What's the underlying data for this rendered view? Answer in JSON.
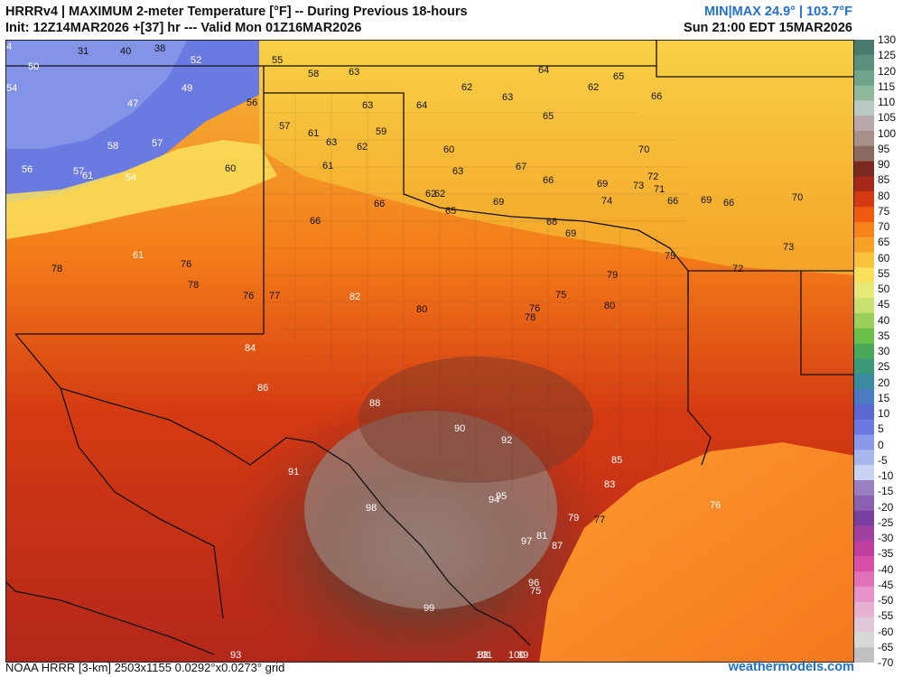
{
  "header": {
    "title": "HRRRv4 | MAXIMUM 2-meter Temperature [°F] -- During Previous 18-hours",
    "init": "Init: 12Z14MAR2026 +[37] hr --- Valid Mon 01Z16MAR2026",
    "minmax": "MIN|MAX 24.9° | 103.7°F",
    "valid_local": "Sun 21:00 EDT 15MAR2026"
  },
  "footer": {
    "left": "NOAA HRRR [3-km] 2503x1155 0.0292°x0.0273° grid",
    "right": "weathermodels.com"
  },
  "colorbar": {
    "ticks": [
      "130",
      "125",
      "120",
      "115",
      "110",
      "105",
      "100",
      "95",
      "90",
      "85",
      "80",
      "75",
      "70",
      "65",
      "60",
      "55",
      "50",
      "45",
      "40",
      "35",
      "30",
      "25",
      "20",
      "15",
      "10",
      "5",
      "0",
      "-5",
      "-10",
      "-15",
      "-20",
      "-25",
      "-30",
      "-35",
      "-40",
      "-45",
      "-50",
      "-55",
      "-60",
      "-65",
      "-70"
    ],
    "colors": [
      "#4a7a6e",
      "#5a8f7c",
      "#70a48a",
      "#8db89a",
      "#b9c8c0",
      "#b8a8a8",
      "#a89088",
      "#8a6a5e",
      "#7a2a20",
      "#a52a1a",
      "#d43a12",
      "#f05a10",
      "#f5821a",
      "#f7a126",
      "#f8c23a",
      "#f9e05a",
      "#e6e878",
      "#c8e070",
      "#9ad05a",
      "#6bc04a",
      "#4aa85a",
      "#3a9a78",
      "#3a8aa0",
      "#4a7ac0",
      "#5a6ad0",
      "#6a7ae0",
      "#8a9ae8",
      "#a8b8ee",
      "#c8d4f2",
      "#9a80c0",
      "#8a60b0",
      "#7a40a0",
      "#a040a0",
      "#c040a0",
      "#d850a8",
      "#e070b8",
      "#e890c8",
      "#e8b0d0",
      "#e0c8d8",
      "#d8d8d8",
      "#c0c0c0"
    ]
  },
  "labels": [
    {
      "t": "31",
      "c": "dark"
    },
    {
      "t": "40",
      "c": "dark"
    },
    {
      "t": "38",
      "c": "dark"
    },
    {
      "t": "50",
      "c": "light"
    },
    {
      "t": "52",
      "c": "light"
    },
    {
      "t": "55",
      "c": "dark"
    },
    {
      "t": "58",
      "c": "dark"
    },
    {
      "t": "63",
      "c": "dark"
    },
    {
      "t": "64",
      "c": "dark"
    },
    {
      "t": "65",
      "c": "dark"
    },
    {
      "t": "54",
      "c": "light"
    },
    {
      "t": "49",
      "c": "light"
    },
    {
      "t": "47",
      "c": "light"
    },
    {
      "t": "56",
      "c": "dark"
    },
    {
      "t": "62",
      "c": "dark"
    },
    {
      "t": "63",
      "c": "dark"
    },
    {
      "t": "62",
      "c": "dark"
    },
    {
      "t": "63",
      "c": "dark"
    },
    {
      "t": "64",
      "c": "dark"
    },
    {
      "t": "65",
      "c": "dark"
    },
    {
      "t": "66",
      "c": "dark"
    },
    {
      "t": "57",
      "c": "dark"
    },
    {
      "t": "61",
      "c": "dark"
    },
    {
      "t": "59",
      "c": "dark"
    },
    {
      "t": "58",
      "c": "light"
    },
    {
      "t": "57",
      "c": "light"
    },
    {
      "t": "63",
      "c": "dark"
    },
    {
      "t": "62",
      "c": "dark"
    },
    {
      "t": "56",
      "c": "light"
    },
    {
      "t": "57",
      "c": "light"
    },
    {
      "t": "61",
      "c": "light"
    },
    {
      "t": "54",
      "c": "light"
    },
    {
      "t": "60",
      "c": "dark"
    },
    {
      "t": "61",
      "c": "dark"
    },
    {
      "t": "60",
      "c": "dark"
    },
    {
      "t": "63",
      "c": "dark"
    },
    {
      "t": "67",
      "c": "dark"
    },
    {
      "t": "66",
      "c": "dark"
    },
    {
      "t": "69",
      "c": "dark"
    },
    {
      "t": "70",
      "c": "dark"
    },
    {
      "t": "71",
      "c": "dark"
    },
    {
      "t": "72",
      "c": "dark"
    },
    {
      "t": "62",
      "c": "dark"
    },
    {
      "t": "62",
      "c": "dark"
    },
    {
      "t": "66",
      "c": "dark"
    },
    {
      "t": "66",
      "c": "dark"
    },
    {
      "t": "65",
      "c": "dark"
    },
    {
      "t": "69",
      "c": "dark"
    },
    {
      "t": "68",
      "c": "dark"
    },
    {
      "t": "69",
      "c": "dark"
    },
    {
      "t": "73",
      "c": "dark"
    },
    {
      "t": "74",
      "c": "dark"
    },
    {
      "t": "66",
      "c": "dark"
    },
    {
      "t": "69",
      "c": "dark"
    },
    {
      "t": "66",
      "c": "dark"
    },
    {
      "t": "70",
      "c": "dark"
    },
    {
      "t": "73",
      "c": "dark"
    },
    {
      "t": "75",
      "c": "dark"
    },
    {
      "t": "72",
      "c": "dark"
    },
    {
      "t": "61",
      "c": "light"
    },
    {
      "t": "78",
      "c": "dark"
    },
    {
      "t": "76",
      "c": "dark"
    },
    {
      "t": "78",
      "c": "dark"
    },
    {
      "t": "76",
      "c": "dark"
    },
    {
      "t": "77",
      "c": "dark"
    },
    {
      "t": "82",
      "c": "light"
    },
    {
      "t": "80",
      "c": "dark"
    },
    {
      "t": "78",
      "c": "dark"
    },
    {
      "t": "76",
      "c": "dark"
    },
    {
      "t": "75",
      "c": "dark"
    },
    {
      "t": "79",
      "c": "dark"
    },
    {
      "t": "80",
      "c": "dark"
    },
    {
      "t": "84",
      "c": "light"
    },
    {
      "t": "86",
      "c": "light"
    },
    {
      "t": "88",
      "c": "light"
    },
    {
      "t": "90",
      "c": "light"
    },
    {
      "t": "92",
      "c": "light"
    },
    {
      "t": "91",
      "c": "light"
    },
    {
      "t": "95",
      "c": "light"
    },
    {
      "t": "96",
      "c": "light"
    },
    {
      "t": "98",
      "c": "light"
    },
    {
      "t": "99",
      "c": "light"
    },
    {
      "t": "101",
      "c": "light"
    },
    {
      "t": "100",
      "c": "light"
    },
    {
      "t": "89",
      "c": "light"
    },
    {
      "t": "88",
      "c": "light"
    },
    {
      "t": "87",
      "c": "light"
    },
    {
      "t": "83",
      "c": "light"
    },
    {
      "t": "85",
      "c": "light"
    },
    {
      "t": "81",
      "c": "light"
    },
    {
      "t": "79",
      "c": "light"
    },
    {
      "t": "77",
      "c": "dark"
    },
    {
      "t": "76",
      "c": "light"
    },
    {
      "t": "75",
      "c": "light"
    },
    {
      "t": "97",
      "c": "light"
    },
    {
      "t": "94",
      "c": "light"
    },
    {
      "t": "93",
      "c": "light"
    },
    {
      "t": "84",
      "c": "light"
    }
  ]
}
